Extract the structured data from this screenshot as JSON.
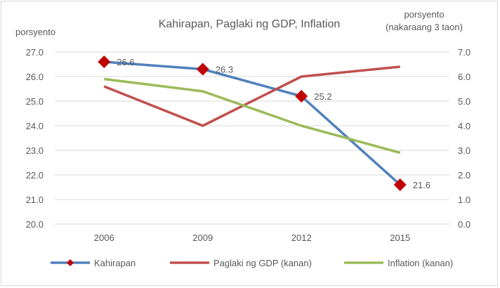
{
  "chart_data": {
    "type": "line",
    "title": "Kahirapan, Paglaki ng GDP, Inflation",
    "ylabel_left": "porsyento",
    "ylabel_right": [
      "porsyento",
      "(nakaraang 3 taon)"
    ],
    "categories": [
      "2006",
      "2009",
      "2012",
      "2015"
    ],
    "ylim_left": [
      20,
      27
    ],
    "ylim_right": [
      0,
      7
    ],
    "yticks_left": [
      "20.0",
      "21.0",
      "22.0",
      "23.0",
      "24.0",
      "25.0",
      "26.0",
      "27.0"
    ],
    "yticks_right": [
      "0.0",
      "1.0",
      "2.0",
      "3.0",
      "4.0",
      "5.0",
      "6.0",
      "7.0"
    ],
    "grid": true,
    "legend_position": "bottom",
    "series": [
      {
        "name": "Kahirapan",
        "axis": "left",
        "values": [
          26.6,
          26.3,
          25.2,
          21.6
        ],
        "labels": [
          "26.6",
          "26.3",
          "25.2",
          "21.6"
        ],
        "color": "#4f81bd",
        "marker": "diamond",
        "marker_color": "#c00000"
      },
      {
        "name": "Paglaki ng GDP (kanan)",
        "axis": "right",
        "values": [
          5.6,
          4.0,
          6.0,
          6.4
        ],
        "color": "#c0504d"
      },
      {
        "name": "Inflation (kanan)",
        "axis": "right",
        "values": [
          5.9,
          5.4,
          4.0,
          2.9
        ],
        "color": "#9bbb59"
      }
    ]
  }
}
